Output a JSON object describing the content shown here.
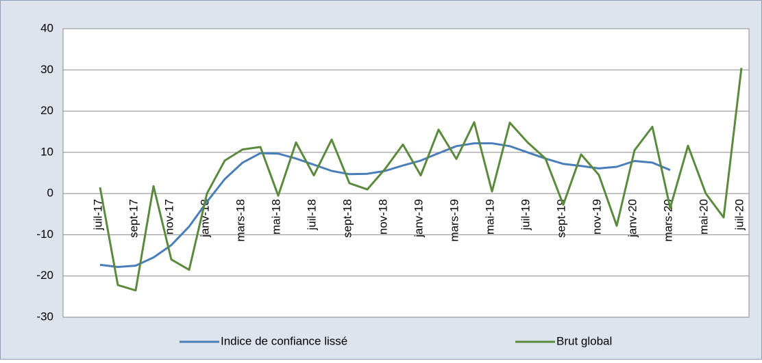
{
  "chart_data": {
    "type": "line",
    "categories": [
      "juil-17",
      null,
      "sept-17",
      null,
      "nov-17",
      null,
      "janv-18",
      null,
      "mars-18",
      null,
      "mai-18",
      null,
      "juil-18",
      null,
      "sept-18",
      null,
      "nov-18",
      null,
      "janv-19",
      null,
      "mars-19",
      null,
      "mai-19",
      null,
      "juil-19",
      null,
      "sept-19",
      null,
      "nov-19",
      null,
      "janv-20",
      null,
      "mars-20",
      null,
      "mai-20",
      null,
      "juil-20"
    ],
    "series": [
      {
        "name": "Indice de confiance lissé",
        "color": "#4a7ebb",
        "values": [
          -17.3,
          -17.8,
          -17.5,
          -15.5,
          -12.5,
          -8,
          -2,
          3.5,
          7.5,
          9.8,
          9.7,
          8.5,
          7,
          5.5,
          4.7,
          4.8,
          5.5,
          6.8,
          8,
          9.8,
          11.5,
          12.2,
          12.2,
          11.5,
          10,
          8.5,
          7.2,
          6.7,
          6.1,
          6.5,
          7.9,
          7.5,
          5.7,
          null,
          null,
          null,
          null
        ]
      },
      {
        "name": "Brut global",
        "color": "#5b8a3c",
        "values": [
          1.5,
          -22.2,
          -23.5,
          1.8,
          -16,
          -18.5,
          0,
          8,
          10.7,
          11.3,
          -0.5,
          12.4,
          4.4,
          13.1,
          2.5,
          1,
          6,
          11.9,
          4.4,
          15.5,
          8.4,
          17.3,
          0.5,
          17.2,
          12.4,
          8.5,
          -2.7,
          9.5,
          4.5,
          -7.8,
          10.5,
          16.2,
          -3.5,
          11.6,
          0,
          -5.8,
          30.5
        ]
      }
    ],
    "ylim": [
      -30,
      40
    ],
    "yticks": [
      -30,
      -20,
      -10,
      0,
      10,
      20,
      30,
      40
    ],
    "grid": true,
    "legend": "bottom"
  }
}
